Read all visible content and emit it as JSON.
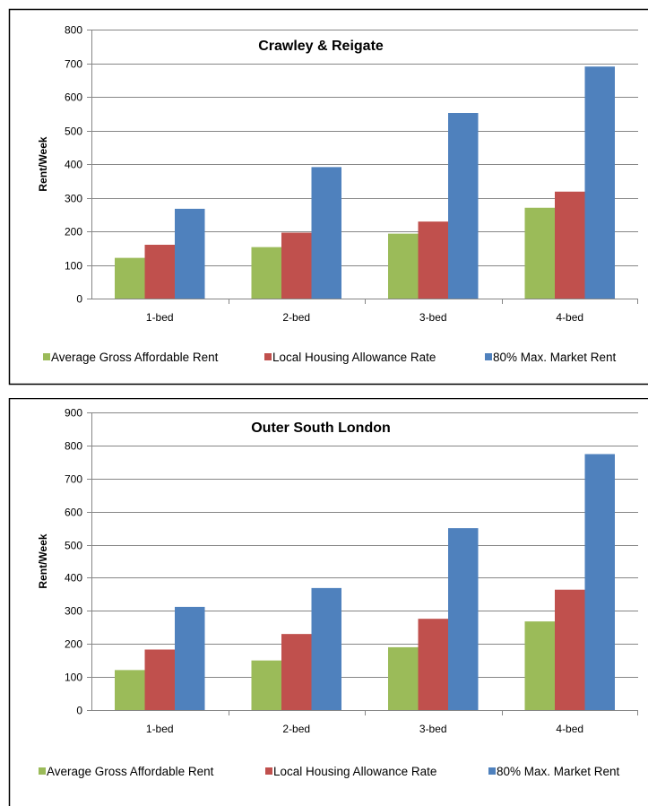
{
  "chart_data": [
    {
      "type": "bar",
      "title": "Crawley & Reigate",
      "ylabel": "Rent/Week",
      "xlabel": "",
      "categories": [
        "1-bed",
        "2-bed",
        "3-bed",
        "4-bed"
      ],
      "ylim": [
        0,
        800
      ],
      "yticks": [
        0,
        100,
        200,
        300,
        400,
        500,
        600,
        700,
        800
      ],
      "grid": true,
      "legend_position": "bottom",
      "series": [
        {
          "name": "Average Gross Affordable Rent",
          "color": "#9BBB59",
          "values": [
            121,
            153,
            193,
            270
          ]
        },
        {
          "name": "Local Housing Allowance Rate",
          "color": "#C0504D",
          "values": [
            160,
            196,
            229,
            318
          ]
        },
        {
          "name": "80% Max. Market Rent",
          "color": "#4F81BD",
          "values": [
            267,
            391,
            552,
            690
          ]
        }
      ]
    },
    {
      "type": "bar",
      "title": "Outer South London",
      "ylabel": "Rent/Week",
      "xlabel": "",
      "categories": [
        "1-bed",
        "2-bed",
        "3-bed",
        "4-bed"
      ],
      "ylim": [
        0,
        900
      ],
      "yticks": [
        0,
        100,
        200,
        300,
        400,
        500,
        600,
        700,
        800,
        900
      ],
      "grid": true,
      "legend_position": "bottom",
      "series": [
        {
          "name": "Average Gross Affordable Rent",
          "color": "#9BBB59",
          "values": [
            121,
            150,
            190,
            268
          ]
        },
        {
          "name": "Local Housing Allowance Rate",
          "color": "#C0504D",
          "values": [
            183,
            230,
            276,
            364
          ]
        },
        {
          "name": "80% Max. Market Rent",
          "color": "#4F81BD",
          "values": [
            312,
            369,
            550,
            774
          ]
        }
      ]
    }
  ]
}
